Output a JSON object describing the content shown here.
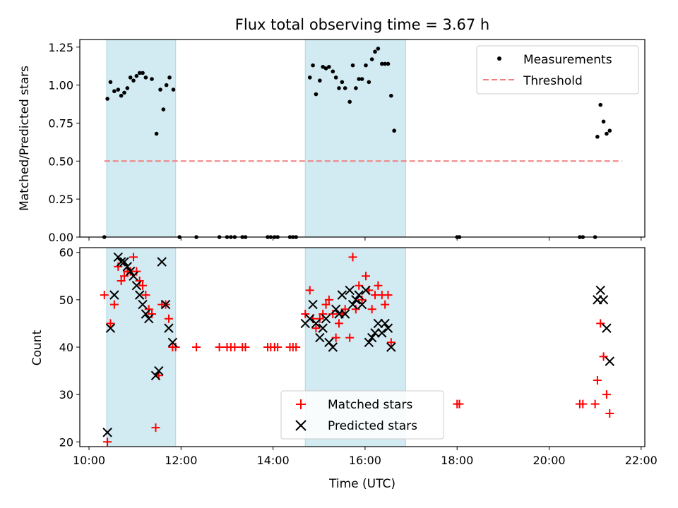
{
  "figure": {
    "title": "Flux total observing time = 3.67 h",
    "shaded_color": "#add8e6",
    "threshold_color": "#f08080"
  },
  "chart_data": [
    {
      "type": "scatter",
      "panel": "top",
      "title": "Flux total observing time = 3.67 h",
      "xlabel": "",
      "ylabel": "Matched/Predicted stars",
      "x_unit": "hours UTC",
      "xlim": [
        "10:00",
        "22:00"
      ],
      "ylim": [
        0,
        1.3
      ],
      "yticks": [
        "0.00",
        "0.25",
        "0.50",
        "0.75",
        "1.00",
        "1.25"
      ],
      "grid": false,
      "legend_position": "top-right",
      "shaded_intervals": [
        [
          "10:23",
          "11:53"
        ],
        [
          "14:42",
          "16:53"
        ]
      ],
      "series": [
        {
          "name": "Measurements",
          "type": "scatter",
          "color": "#000000",
          "points": [
            [
              "10:20",
              0.0
            ],
            [
              "10:24",
              0.91
            ],
            [
              "10:28",
              1.02
            ],
            [
              "10:33",
              0.96
            ],
            [
              "10:38",
              0.97
            ],
            [
              "10:42",
              0.93
            ],
            [
              "10:46",
              0.95
            ],
            [
              "10:50",
              0.98
            ],
            [
              "10:54",
              1.05
            ],
            [
              "10:58",
              1.03
            ],
            [
              "11:02",
              1.06
            ],
            [
              "11:06",
              1.08
            ],
            [
              "11:10",
              1.08
            ],
            [
              "11:14",
              1.05
            ],
            [
              "11:22",
              1.04
            ],
            [
              "11:28",
              0.68
            ],
            [
              "11:33",
              0.97
            ],
            [
              "11:37",
              0.84
            ],
            [
              "11:41",
              1.0
            ],
            [
              "11:45",
              1.05
            ],
            [
              "11:50",
              0.97
            ],
            [
              "11:58",
              0.0
            ],
            [
              "12:20",
              0.0
            ],
            [
              "12:50",
              0.0
            ],
            [
              "13:00",
              0.0
            ],
            [
              "13:05",
              0.0
            ],
            [
              "13:10",
              0.0
            ],
            [
              "13:20",
              0.0
            ],
            [
              "13:24",
              0.0
            ],
            [
              "13:53",
              0.0
            ],
            [
              "13:57",
              0.0
            ],
            [
              "14:02",
              0.0
            ],
            [
              "14:06",
              0.0
            ],
            [
              "14:22",
              0.0
            ],
            [
              "14:26",
              0.0
            ],
            [
              "14:30",
              0.0
            ],
            [
              "14:48",
              1.05
            ],
            [
              "14:52",
              1.13
            ],
            [
              "14:56",
              0.94
            ],
            [
              "15:01",
              1.03
            ],
            [
              "15:05",
              1.12
            ],
            [
              "15:09",
              1.11
            ],
            [
              "15:13",
              1.12
            ],
            [
              "15:18",
              1.09
            ],
            [
              "15:22",
              1.05
            ],
            [
              "15:26",
              0.98
            ],
            [
              "15:30",
              1.02
            ],
            [
              "15:34",
              0.98
            ],
            [
              "15:40",
              0.89
            ],
            [
              "15:44",
              1.13
            ],
            [
              "15:48",
              0.98
            ],
            [
              "15:52",
              1.04
            ],
            [
              "15:56",
              1.04
            ],
            [
              "16:01",
              1.13
            ],
            [
              "16:05",
              1.02
            ],
            [
              "16:09",
              1.17
            ],
            [
              "16:13",
              1.22
            ],
            [
              "16:17",
              1.24
            ],
            [
              "16:22",
              1.14
            ],
            [
              "16:26",
              1.14
            ],
            [
              "16:30",
              1.14
            ],
            [
              "16:34",
              0.93
            ],
            [
              "16:38",
              0.7
            ],
            [
              "18:00",
              0.0
            ],
            [
              "18:03",
              0.0
            ],
            [
              "20:40",
              0.0
            ],
            [
              "20:44",
              0.0
            ],
            [
              "21:00",
              0.0
            ],
            [
              "21:03",
              0.66
            ],
            [
              "21:07",
              0.87
            ],
            [
              "21:11",
              0.76
            ],
            [
              "21:15",
              0.68
            ],
            [
              "21:19",
              0.7
            ]
          ]
        },
        {
          "name": "Threshold",
          "type": "line",
          "style": "dashed",
          "color": "#f08080",
          "points": [
            [
              "10:20",
              0.5
            ],
            [
              "21:35",
              0.5
            ]
          ]
        }
      ]
    },
    {
      "type": "scatter",
      "panel": "bottom",
      "xlabel": "Time (UTC)",
      "ylabel": "Count",
      "x_unit": "hours UTC",
      "xlim": [
        "10:00",
        "22:00"
      ],
      "ylim": [
        19,
        61
      ],
      "xticks": [
        "10:00",
        "12:00",
        "14:00",
        "16:00",
        "18:00",
        "20:00",
        "22:00"
      ],
      "yticks": [
        "20",
        "30",
        "40",
        "50",
        "60"
      ],
      "grid": false,
      "legend_position": "bottom-center",
      "shaded_intervals": [
        [
          "10:23",
          "11:53"
        ],
        [
          "14:42",
          "16:53"
        ]
      ],
      "series": [
        {
          "name": "Matched stars",
          "marker": "plus",
          "color": "#ff0000",
          "points": [
            [
              "10:20",
              51
            ],
            [
              "10:24",
              20
            ],
            [
              "10:28",
              45
            ],
            [
              "10:33",
              49
            ],
            [
              "10:38",
              57
            ],
            [
              "10:42",
              54
            ],
            [
              "10:46",
              55
            ],
            [
              "10:50",
              56
            ],
            [
              "10:54",
              56
            ],
            [
              "10:58",
              59
            ],
            [
              "11:02",
              56
            ],
            [
              "11:06",
              54
            ],
            [
              "11:10",
              53
            ],
            [
              "11:14",
              51
            ],
            [
              "11:18",
              48
            ],
            [
              "11:22",
              47
            ],
            [
              "11:27",
              23
            ],
            [
              "11:31",
              34
            ],
            [
              "11:35",
              49
            ],
            [
              "11:40",
              49
            ],
            [
              "11:44",
              46
            ],
            [
              "11:49",
              40
            ],
            [
              "11:53",
              40
            ],
            [
              "12:20",
              40
            ],
            [
              "12:50",
              40
            ],
            [
              "13:00",
              40
            ],
            [
              "13:05",
              40
            ],
            [
              "13:10",
              40
            ],
            [
              "13:20",
              40
            ],
            [
              "13:24",
              40
            ],
            [
              "13:53",
              40
            ],
            [
              "13:57",
              40
            ],
            [
              "14:02",
              40
            ],
            [
              "14:06",
              40
            ],
            [
              "14:22",
              40
            ],
            [
              "14:26",
              40
            ],
            [
              "14:30",
              40
            ],
            [
              "14:42",
              47
            ],
            [
              "14:48",
              52
            ],
            [
              "14:52",
              46
            ],
            [
              "14:56",
              44
            ],
            [
              "15:01",
              46
            ],
            [
              "15:05",
              47
            ],
            [
              "15:09",
              49
            ],
            [
              "15:13",
              50
            ],
            [
              "15:18",
              47
            ],
            [
              "15:22",
              42
            ],
            [
              "15:26",
              45
            ],
            [
              "15:30",
              47
            ],
            [
              "15:34",
              48
            ],
            [
              "15:40",
              42
            ],
            [
              "15:44",
              59
            ],
            [
              "15:48",
              48
            ],
            [
              "15:52",
              53
            ],
            [
              "15:56",
              50
            ],
            [
              "16:01",
              55
            ],
            [
              "16:05",
              52
            ],
            [
              "16:09",
              48
            ],
            [
              "16:13",
              51
            ],
            [
              "16:17",
              53
            ],
            [
              "16:22",
              51
            ],
            [
              "16:26",
              49
            ],
            [
              "16:30",
              51
            ],
            [
              "16:34",
              41
            ],
            [
              "18:00",
              28
            ],
            [
              "18:03",
              28
            ],
            [
              "20:40",
              28
            ],
            [
              "20:44",
              28
            ],
            [
              "21:00",
              28
            ],
            [
              "21:03",
              33
            ],
            [
              "21:07",
              45
            ],
            [
              "21:11",
              38
            ],
            [
              "21:15",
              30
            ],
            [
              "21:19",
              26
            ]
          ]
        },
        {
          "name": "Predicted stars",
          "marker": "x",
          "color": "#000000",
          "points": [
            [
              "10:24",
              22
            ],
            [
              "10:28",
              44
            ],
            [
              "10:33",
              51
            ],
            [
              "10:38",
              59
            ],
            [
              "10:42",
              58
            ],
            [
              "10:46",
              58
            ],
            [
              "10:50",
              57
            ],
            [
              "10:54",
              56
            ],
            [
              "10:58",
              55
            ],
            [
              "11:02",
              53
            ],
            [
              "11:06",
              51
            ],
            [
              "11:10",
              49
            ],
            [
              "11:14",
              47
            ],
            [
              "11:18",
              46
            ],
            [
              "11:27",
              34
            ],
            [
              "11:31",
              35
            ],
            [
              "11:35",
              58
            ],
            [
              "11:40",
              49
            ],
            [
              "11:44",
              44
            ],
            [
              "11:49",
              41
            ],
            [
              "14:42",
              45
            ],
            [
              "14:48",
              46
            ],
            [
              "14:52",
              49
            ],
            [
              "14:56",
              45
            ],
            [
              "15:01",
              42
            ],
            [
              "15:05",
              44
            ],
            [
              "15:09",
              46
            ],
            [
              "15:13",
              41
            ],
            [
              "15:18",
              40
            ],
            [
              "15:22",
              48
            ],
            [
              "15:26",
              47
            ],
            [
              "15:30",
              51
            ],
            [
              "15:34",
              47
            ],
            [
              "15:40",
              52
            ],
            [
              "15:44",
              49
            ],
            [
              "15:48",
              50
            ],
            [
              "15:52",
              51
            ],
            [
              "15:56",
              49
            ],
            [
              "16:01",
              52
            ],
            [
              "16:05",
              41
            ],
            [
              "16:09",
              42
            ],
            [
              "16:13",
              43
            ],
            [
              "16:17",
              45
            ],
            [
              "16:22",
              43
            ],
            [
              "16:26",
              45
            ],
            [
              "16:30",
              44
            ],
            [
              "16:34",
              40
            ],
            [
              "21:03",
              50
            ],
            [
              "21:07",
              52
            ],
            [
              "21:11",
              50
            ],
            [
              "21:15",
              44
            ],
            [
              "21:19",
              37
            ]
          ]
        }
      ]
    }
  ]
}
